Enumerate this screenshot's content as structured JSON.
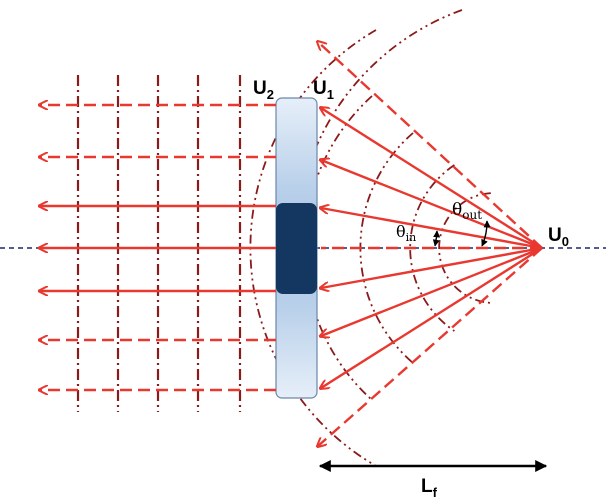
{
  "labels": {
    "u2": "U",
    "u2_sub": "2",
    "u1": "U",
    "u1_sub": "1",
    "u0": "U",
    "u0_sub": "0",
    "theta_out": "θ",
    "theta_out_sub": "out",
    "theta_in": "θ",
    "theta_in_sub": "in",
    "lf": "L",
    "lf_sub": "f"
  },
  "colors": {
    "ray": "#e8382f",
    "wavefront": "#8b1a1a",
    "element_light": "#c9dcef",
    "element_dark": "#133761",
    "axis": "#1a2a6b"
  }
}
